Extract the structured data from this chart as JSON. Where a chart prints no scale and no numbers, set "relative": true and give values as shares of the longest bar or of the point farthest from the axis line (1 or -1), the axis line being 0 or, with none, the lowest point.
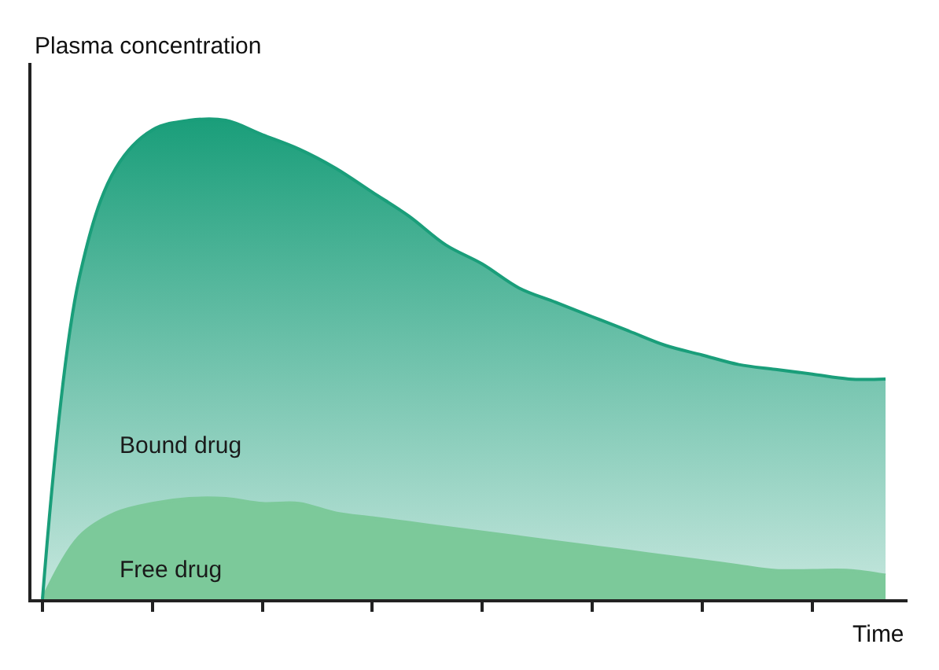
{
  "chart_data": {
    "type": "area",
    "relative": true,
    "stacked": true,
    "xlabel": "Time",
    "ylabel": "Plasma concentration",
    "legend": false,
    "categories": [
      null,
      null,
      null,
      null,
      null,
      null,
      null,
      null,
      null,
      null,
      null,
      null,
      null,
      null,
      null,
      null,
      null,
      null,
      null,
      null,
      null,
      null,
      null,
      null
    ],
    "series": [
      {
        "name": "Free drug",
        "color": "#7cc99a",
        "values": [
          0,
          0.13,
          0.18,
          0.2,
          0.21,
          0.21,
          0.2,
          0.2,
          0.18,
          0.17,
          0.16,
          0.15,
          0.14,
          0.13,
          0.12,
          0.11,
          0.1,
          0.09,
          0.08,
          0.07,
          0.06,
          0.06,
          0.06,
          0.05
        ]
      },
      {
        "name": "Bound drug",
        "color": "#1a9e7a",
        "values": [
          0,
          0.54,
          0.72,
          0.78,
          0.79,
          0.79,
          0.77,
          0.74,
          0.72,
          0.68,
          0.64,
          0.59,
          0.56,
          0.52,
          0.5,
          0.48,
          0.46,
          0.44,
          0.43,
          0.42,
          0.42,
          0.41,
          0.4,
          0.41
        ]
      }
    ]
  }
}
